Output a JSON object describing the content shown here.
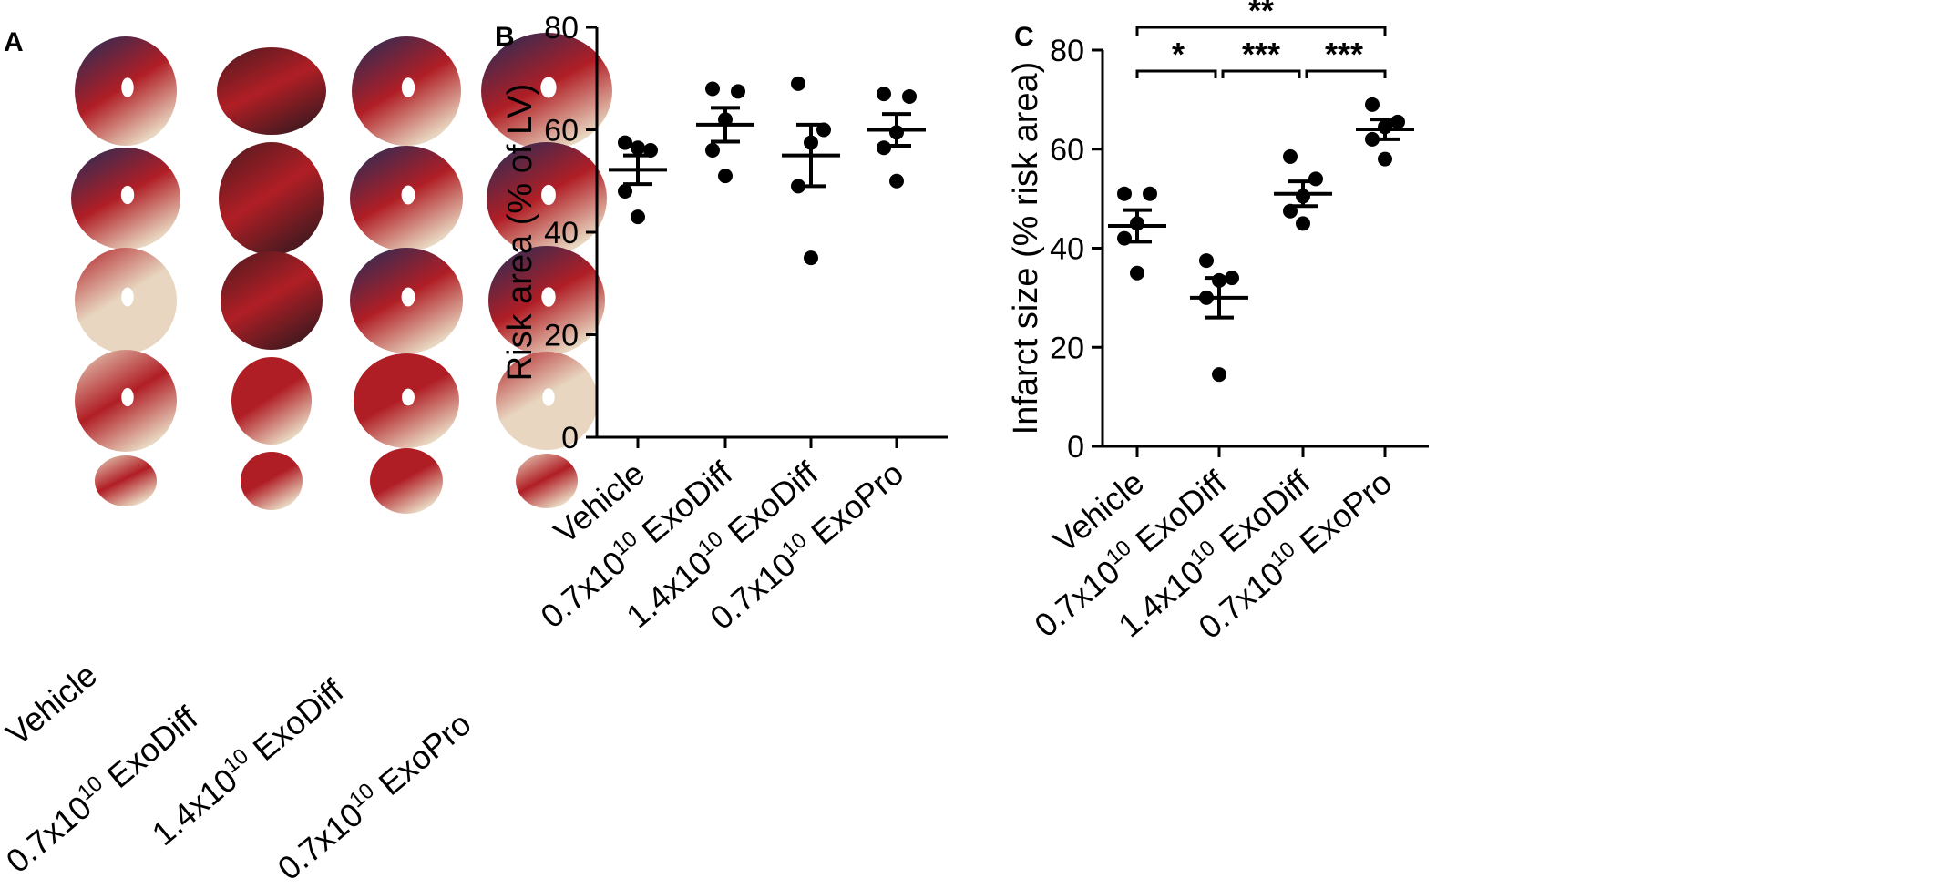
{
  "panel_a": {
    "letter": "A",
    "columns": [
      {
        "label_main": "Vehicle",
        "label_sup": ""
      },
      {
        "label_main": "0.7x10",
        "label_sup": "10",
        "label_tail": " ExoDiff"
      },
      {
        "label_main": "1.4x10",
        "label_sup": "10",
        "label_tail": " ExoDiff"
      },
      {
        "label_main": "0.7x10",
        "label_sup": "10",
        "label_tail": " ExoPro"
      }
    ],
    "colors": {
      "blue": "#1f2d5a",
      "red": "#b01e25",
      "pale": "#e8d6c0",
      "dark": "#4a1a20"
    }
  },
  "chart_data": [
    {
      "panel": "B",
      "type": "scatter",
      "ylabel": "Risk area (% of LV)",
      "ylim": [
        0,
        80
      ],
      "yticks": [
        0,
        20,
        40,
        60,
        80
      ],
      "categories": [
        {
          "main": "Vehicle",
          "sup": "",
          "tail": ""
        },
        {
          "main": "0.7x10",
          "sup": "10",
          "tail": " ExoDiff"
        },
        {
          "main": "1.4x10",
          "sup": "10",
          "tail": " ExoDiff"
        },
        {
          "main": "0.7x10",
          "sup": "10",
          "tail": " ExoPro"
        }
      ],
      "points": [
        [
          57.5,
          56.0,
          56.5,
          48.0,
          43.0
        ],
        [
          68.0,
          67.5,
          62.0,
          56.0,
          51.0
        ],
        [
          69.0,
          60.0,
          57.5,
          49.0,
          35.0
        ],
        [
          67.0,
          66.5,
          59.5,
          56.5,
          50.0
        ]
      ],
      "mean": [
        52.2,
        61.0,
        55.0,
        60.0
      ],
      "sem": [
        2.8,
        3.3,
        6.0,
        3.1
      ],
      "significance": []
    },
    {
      "panel": "C",
      "type": "scatter",
      "ylabel": "Infarct size (% risk area)",
      "ylim": [
        0,
        80
      ],
      "yticks": [
        0,
        20,
        40,
        60,
        80
      ],
      "categories": [
        {
          "main": "Vehicle",
          "sup": "",
          "tail": ""
        },
        {
          "main": "0.7x10",
          "sup": "10",
          "tail": " ExoDiff"
        },
        {
          "main": "1.4x10",
          "sup": "10",
          "tail": " ExoDiff"
        },
        {
          "main": "0.7x10",
          "sup": "10",
          "tail": " ExoPro"
        }
      ],
      "points": [
        [
          51.0,
          51.0,
          45.0,
          42.0,
          35.0
        ],
        [
          37.5,
          34.0,
          33.5,
          30.0,
          14.5
        ],
        [
          58.5,
          54.0,
          50.5,
          47.5,
          45.0
        ],
        [
          69.0,
          65.5,
          64.5,
          62.0,
          58.0
        ]
      ],
      "mean": [
        44.5,
        30.0,
        51.0,
        64.0
      ],
      "sem": [
        3.2,
        4.0,
        2.5,
        2.0
      ],
      "significance": [
        {
          "from": 0,
          "to": 3,
          "label": "**"
        },
        {
          "from": 0,
          "to": 1,
          "label": "*"
        },
        {
          "from": 1,
          "to": 2,
          "label": "***"
        },
        {
          "from": 2,
          "to": 3,
          "label": "***"
        }
      ]
    }
  ]
}
